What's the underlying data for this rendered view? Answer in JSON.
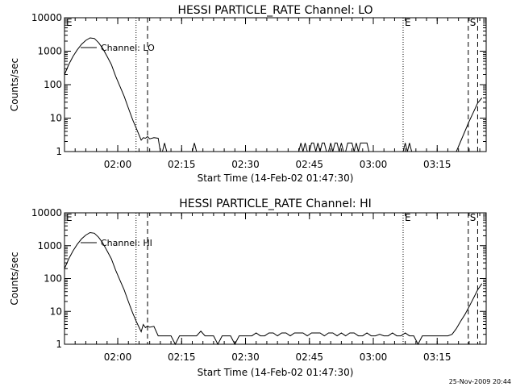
{
  "footer_timestamp": "25-Nov-2009 20:44",
  "chart_data": [
    {
      "type": "line",
      "title": "HESSI PARTICLE_RATE Channel: LO",
      "xlabel": "Start Time (14-Feb-02 01:47:30)",
      "ylabel": "Counts/sec",
      "x_unit": "minutes since 01:47:30",
      "xlim": [
        0,
        99
      ],
      "ylim": [
        1,
        10000
      ],
      "y_scale": "log",
      "grid": false,
      "legend": {
        "placement": "top-left",
        "entries": [
          "Channel: LO"
        ]
      },
      "x_ticks": [
        {
          "x": 12.5,
          "label": "02:00"
        },
        {
          "x": 27.5,
          "label": "02:15"
        },
        {
          "x": 42.5,
          "label": "02:30"
        },
        {
          "x": 57.5,
          "label": "02:45"
        },
        {
          "x": 72.5,
          "label": "03:00"
        },
        {
          "x": 87.5,
          "label": "03:15"
        }
      ],
      "y_ticks": [
        {
          "y": 1,
          "label": "1"
        },
        {
          "y": 10,
          "label": "10"
        },
        {
          "y": 100,
          "label": "100"
        },
        {
          "y": 1000,
          "label": "1000"
        },
        {
          "y": 10000,
          "label": "10000"
        }
      ],
      "markers": [
        {
          "x": 0,
          "style": "none",
          "label": "E"
        },
        {
          "x": 16.8,
          "style": "dotted",
          "label": ""
        },
        {
          "x": 19.5,
          "style": "dashed",
          "label": ""
        },
        {
          "x": 79.5,
          "style": "dotted",
          "label": "E"
        },
        {
          "x": 94.8,
          "style": "dashed",
          "label": "S"
        },
        {
          "x": 97.0,
          "style": "dashed",
          "label": ""
        }
      ],
      "series": [
        {
          "name": "Channel: LO",
          "x": [
            0,
            1,
            2,
            3,
            4,
            5,
            6,
            7,
            8,
            9,
            10,
            11,
            12,
            13,
            14,
            15,
            16,
            17,
            18,
            18.5,
            19,
            19.5,
            20,
            21,
            22,
            22.5,
            23,
            23.5,
            24,
            24.5,
            30,
            30.5,
            31,
            31.5,
            55,
            55.5,
            56,
            56.5,
            57,
            57.5,
            58,
            58.5,
            59,
            59.5,
            60,
            60.5,
            61,
            61.5,
            62,
            62.5,
            63,
            63.5,
            64,
            64.5,
            65,
            65.5,
            66,
            66.5,
            67,
            67.5,
            68,
            68.5,
            69,
            69.5,
            70,
            70.5,
            71,
            71.5,
            79.5,
            80,
            80.5,
            81,
            81.5,
            92,
            93,
            94,
            95,
            96,
            97,
            98
          ],
          "y": [
            200,
            400,
            700,
            1100,
            1600,
            2100,
            2500,
            2400,
            1800,
            1200,
            700,
            400,
            180,
            90,
            45,
            20,
            9,
            4.5,
            2.2,
            2.6,
            2.5,
            2.8,
            2.4,
            2.6,
            2.5,
            1,
            1,
            1.8,
            1,
            1,
            1,
            1.8,
            1,
            1,
            1,
            1.8,
            1,
            1.8,
            1,
            1,
            1.8,
            1.8,
            1,
            1.8,
            1,
            1.8,
            1.8,
            1,
            1,
            1.8,
            1,
            1.8,
            1.8,
            1,
            1.8,
            1,
            1,
            1.8,
            1.8,
            1.8,
            1,
            1.8,
            1,
            1.8,
            1.8,
            1.8,
            1.8,
            1,
            1,
            1.8,
            1,
            1.8,
            1,
            1,
            2,
            4,
            8,
            15,
            28,
            40
          ]
        }
      ]
    },
    {
      "type": "line",
      "title": "HESSI PARTICLE_RATE Channel: HI",
      "xlabel": "Start Time (14-Feb-02 01:47:30)",
      "ylabel": "Counts/sec",
      "x_unit": "minutes since 01:47:30",
      "xlim": [
        0,
        99
      ],
      "ylim": [
        1,
        10000
      ],
      "y_scale": "log",
      "grid": false,
      "legend": {
        "placement": "top-left",
        "entries": [
          "Channel: HI"
        ]
      },
      "x_ticks": [
        {
          "x": 12.5,
          "label": "02:00"
        },
        {
          "x": 27.5,
          "label": "02:15"
        },
        {
          "x": 42.5,
          "label": "02:30"
        },
        {
          "x": 57.5,
          "label": "02:45"
        },
        {
          "x": 72.5,
          "label": "03:00"
        },
        {
          "x": 87.5,
          "label": "03:15"
        }
      ],
      "y_ticks": [
        {
          "y": 1,
          "label": "1"
        },
        {
          "y": 10,
          "label": "10"
        },
        {
          "y": 100,
          "label": "100"
        },
        {
          "y": 1000,
          "label": "1000"
        },
        {
          "y": 10000,
          "label": "10000"
        }
      ],
      "markers": [
        {
          "x": 0,
          "style": "none",
          "label": "E"
        },
        {
          "x": 16.8,
          "style": "dotted",
          "label": ""
        },
        {
          "x": 19.5,
          "style": "dashed",
          "label": ""
        },
        {
          "x": 79.5,
          "style": "dotted",
          "label": "E"
        },
        {
          "x": 94.8,
          "style": "dashed",
          "label": "S"
        },
        {
          "x": 97.0,
          "style": "dashed",
          "label": ""
        }
      ],
      "series": [
        {
          "name": "Channel: HI",
          "x": [
            0,
            1,
            2,
            3,
            4,
            5,
            6,
            7,
            8,
            9,
            10,
            11,
            12,
            13,
            14,
            15,
            16,
            17,
            18,
            18.5,
            19,
            19.5,
            20,
            21,
            22,
            23,
            24,
            25,
            26,
            27,
            28,
            29,
            30,
            31,
            32,
            33,
            34,
            35,
            36,
            37,
            38,
            39,
            40,
            41,
            42,
            43,
            44,
            45,
            46,
            47,
            48,
            49,
            50,
            51,
            52,
            53,
            54,
            55,
            56,
            57,
            58,
            59,
            60,
            61,
            62,
            63,
            64,
            65,
            66,
            67,
            68,
            69,
            70,
            71,
            72,
            73,
            74,
            75,
            76,
            77,
            78,
            79,
            80,
            81,
            82,
            83,
            84,
            85,
            86,
            87,
            88,
            89,
            90,
            91,
            92,
            93,
            94,
            95,
            96,
            97,
            98
          ],
          "y": [
            200,
            400,
            700,
            1100,
            1600,
            2100,
            2500,
            2400,
            1800,
            1200,
            700,
            400,
            180,
            90,
            45,
            20,
            9,
            4.5,
            2.4,
            4,
            3.2,
            3.6,
            3.3,
            3.5,
            1.8,
            1.8,
            1.8,
            1.8,
            1,
            1.8,
            1.8,
            1.8,
            1.8,
            1.8,
            2.5,
            1.8,
            1.8,
            1.8,
            1,
            1.8,
            1.8,
            1.8,
            1,
            1.8,
            1.8,
            1.8,
            1.8,
            2.2,
            1.8,
            1.8,
            2.2,
            2.2,
            1.8,
            2.2,
            2.2,
            1.8,
            2.2,
            2.2,
            2.2,
            1.8,
            2.2,
            2.2,
            2.2,
            1.8,
            2.2,
            2.2,
            1.8,
            2.2,
            1.8,
            2.2,
            2.2,
            1.8,
            1.8,
            2.2,
            1.8,
            1.8,
            2,
            1.8,
            1.8,
            2.2,
            1.8,
            1.8,
            2.2,
            1.8,
            1.8,
            1,
            1.8,
            1.8,
            1.8,
            1.8,
            1.8,
            1.8,
            1.8,
            2,
            3,
            5,
            8,
            14,
            25,
            45,
            70
          ]
        }
      ]
    }
  ]
}
